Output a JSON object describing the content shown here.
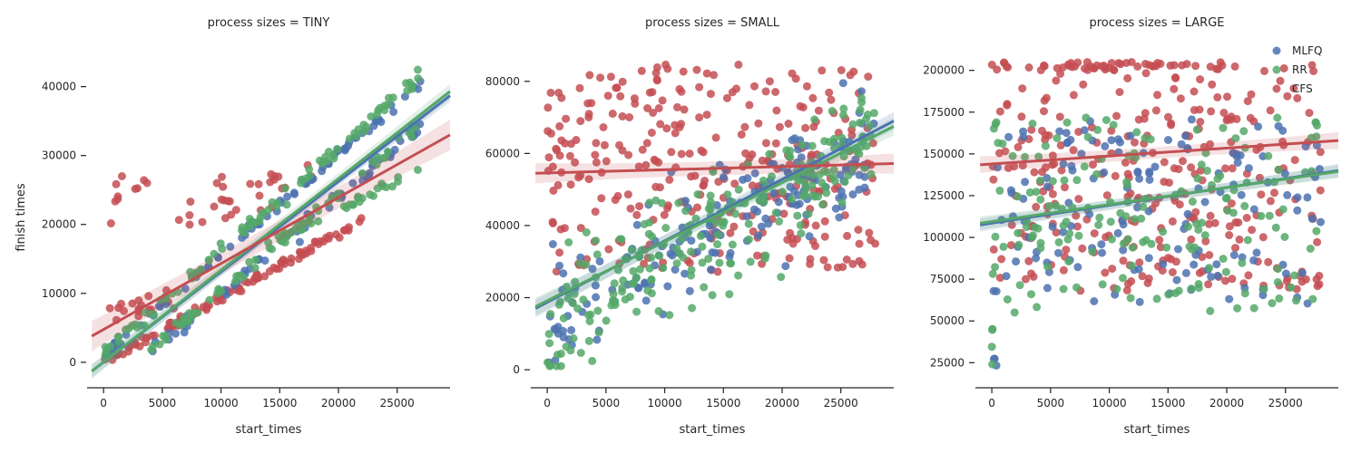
{
  "chart_data": {
    "type": "scatter",
    "xlabel": "start_times",
    "ylabel": "finish times",
    "legend": {
      "placement": "top-right of third panel",
      "entries": [
        {
          "name": "MLFQ",
          "color": "#4c72b0"
        },
        {
          "name": "RR",
          "color": "#55a868"
        },
        {
          "name": "CFS",
          "color": "#c44e52"
        }
      ]
    },
    "grid": false,
    "point_alpha": 0.85,
    "panels": [
      {
        "title": "process sizes = TINY",
        "xlim": [
          -1400,
          29500
        ],
        "ylim": [
          -3700,
          46000
        ],
        "xticks": [
          0,
          5000,
          10000,
          15000,
          20000,
          25000
        ],
        "yticks": [
          0,
          10000,
          20000,
          30000,
          40000
        ],
        "bands": [
          {
            "name": "MLFQ",
            "x": [
              -1000,
              29500
            ],
            "y": [
              -1300,
              38700
            ],
            "halfwidth": 900
          },
          {
            "name": "RR",
            "x": [
              -1000,
              29500
            ],
            "y": [
              -1300,
              39300
            ],
            "halfwidth": 1100
          },
          {
            "name": "CFS",
            "x": [
              -1000,
              29500
            ],
            "y": [
              3800,
              33000
            ],
            "halfwidth": 2200
          }
        ],
        "lines": [
          {
            "name": "MLFQ",
            "x": [
              -1000,
              29500
            ],
            "y": [
              -1300,
              38700
            ]
          },
          {
            "name": "RR",
            "x": [
              -1000,
              29500
            ],
            "y": [
              -1300,
              39300
            ]
          },
          {
            "name": "CFS",
            "x": [
              -1000,
              29500
            ],
            "y": [
              3800,
              33000
            ]
          }
        ],
        "series": [
          {
            "name": "CFS",
            "segments": [
              {
                "x": [
                  0,
                  22000
                ],
                "y": [
                  0,
                  20500
                ],
                "n": 110,
                "jitter": 350
              },
              {
                "x": [
                  0,
                  6000
                ],
                "y": [
                  7000,
                  9500
                ],
                "n": 20,
                "jitter": 900
              },
              {
                "x": [
                  500,
                  4000
                ],
                "y": [
                  22500,
                  27000
                ],
                "n": 10,
                "jitter": 1200
              },
              {
                "x": [
                  6000,
                  16000
                ],
                "y": [
                  21000,
                  25000
                ],
                "n": 20,
                "jitter": 1500
              },
              {
                "x": [
                  10000,
                  19000
                ],
                "y": [
                  25500,
                  28000
                ],
                "n": 10,
                "jitter": 900
              }
            ]
          },
          {
            "name": "MLFQ",
            "segments": [
              {
                "x": [
                  0,
                  27000
                ],
                "y": [
                  1000,
                  40500
                ],
                "n": 80,
                "jitter": 400
              },
              {
                "x": [
                  4000,
                  27000
                ],
                "y": [
                  1500,
                  34000
                ],
                "n": 60,
                "jitter": 500
              }
            ]
          },
          {
            "name": "RR",
            "segments": [
              {
                "x": [
                  0,
                  27000
                ],
                "y": [
                  1200,
                  41500
                ],
                "n": 90,
                "jitter": 450
              },
              {
                "x": [
                  4000,
                  27000
                ],
                "y": [
                  1800,
                  34500
                ],
                "n": 60,
                "jitter": 500
              },
              {
                "x": [
                  14000,
                  27500
                ],
                "y": [
                  17000,
                  28500
                ],
                "n": 35,
                "jitter": 400
              }
            ]
          }
        ]
      },
      {
        "title": "process sizes = SMALL",
        "xlim": [
          -1400,
          29500
        ],
        "ylim": [
          -5000,
          90000
        ],
        "xticks": [
          0,
          5000,
          10000,
          15000,
          20000,
          25000
        ],
        "yticks": [
          0,
          20000,
          40000,
          60000,
          80000
        ],
        "bands": [
          {
            "name": "MLFQ",
            "x": [
              -1000,
              29500
            ],
            "y": [
              17000,
              69000
            ],
            "halfwidth": 2500
          },
          {
            "name": "RR",
            "x": [
              -1000,
              29500
            ],
            "y": [
              17500,
              67500
            ],
            "halfwidth": 2500
          },
          {
            "name": "CFS",
            "x": [
              -1000,
              29500
            ],
            "y": [
              54500,
              57200
            ],
            "halfwidth": 2800
          }
        ],
        "lines": [
          {
            "name": "MLFQ",
            "x": [
              -1000,
              29500
            ],
            "y": [
              17000,
              69000
            ]
          },
          {
            "name": "RR",
            "x": [
              -1000,
              29500
            ],
            "y": [
              17500,
              67500
            ]
          },
          {
            "name": "CFS",
            "x": [
              -1000,
              29500
            ],
            "y": [
              54500,
              57200
            ]
          }
        ],
        "series": [
          {
            "name": "CFS",
            "segments": [
              {
                "x": [
                  0,
                  28000
                ],
                "y": [
                  27000,
                  85000
                ],
                "n": 300,
                "jitter": 0,
                "mode": "uniform"
              }
            ]
          },
          {
            "name": "MLFQ",
            "segments": [
              {
                "x": [
                  0,
                  28000
                ],
                "y": [
                  2000,
                  82000
                ],
                "n": 170,
                "jitter": 7000,
                "mode": "trend",
                "y0": 14000,
                "y1": 64000
              }
            ]
          },
          {
            "name": "RR",
            "segments": [
              {
                "x": [
                  0,
                  28000
                ],
                "y": [
                  1000,
                  82000
                ],
                "n": 230,
                "jitter": 8000,
                "mode": "trend",
                "y0": 12000,
                "y1": 64000
              }
            ]
          }
        ]
      },
      {
        "title": "process sizes = LARGE",
        "xlim": [
          -1400,
          29500
        ],
        "ylim": [
          10000,
          215000
        ],
        "xticks": [
          0,
          5000,
          10000,
          15000,
          20000,
          25000
        ],
        "yticks": [
          25000,
          50000,
          75000,
          100000,
          125000,
          150000,
          175000,
          200000
        ],
        "bands": [
          {
            "name": "MLFQ",
            "x": [
              -1000,
              29500
            ],
            "y": [
              107500,
              140000
            ],
            "halfwidth": 4000
          },
          {
            "name": "RR",
            "x": [
              -1000,
              29500
            ],
            "y": [
              108500,
              139500
            ],
            "halfwidth": 4000
          },
          {
            "name": "CFS",
            "x": [
              -1000,
              29500
            ],
            "y": [
              143500,
              158000
            ],
            "halfwidth": 5000
          }
        ],
        "lines": [
          {
            "name": "MLFQ",
            "x": [
              -1000,
              29500
            ],
            "y": [
              107500,
              140000
            ]
          },
          {
            "name": "RR",
            "x": [
              -1000,
              29500
            ],
            "y": [
              108500,
              139500
            ]
          },
          {
            "name": "CFS",
            "x": [
              -1000,
              29500
            ],
            "y": [
              143500,
              158000
            ]
          }
        ],
        "series": [
          {
            "name": "CFS",
            "segments": [
              {
                "x": [
                  0,
                  28000
                ],
                "y": [
                  68000,
                  205000
                ],
                "n": 280,
                "jitter": 0,
                "mode": "uniform"
              },
              {
                "x": [
                  0,
                  20000
                ],
                "y": [
                  200000,
                  205000
                ],
                "n": 50,
                "jitter": 0,
                "mode": "uniform"
              }
            ]
          },
          {
            "name": "MLFQ",
            "segments": [
              {
                "x": [
                  0,
                  28000
                ],
                "y": [
                  60000,
                  172000
                ],
                "n": 140,
                "jitter": 0,
                "mode": "uniform"
              },
              {
                "x": [
                  0,
                  500
                ],
                "y": [
                  21000,
                  28000
                ],
                "n": 3,
                "jitter": 0,
                "mode": "uniform"
              }
            ]
          },
          {
            "name": "RR",
            "segments": [
              {
                "x": [
                  0,
                  28000
                ],
                "y": [
                  55000,
                  172000
                ],
                "n": 170,
                "jitter": 0,
                "mode": "uniform"
              },
              {
                "x": [
                  0,
                  500
                ],
                "y": [
                  21000,
                  50000
                ],
                "n": 4,
                "jitter": 0,
                "mode": "uniform"
              }
            ]
          }
        ]
      }
    ]
  }
}
